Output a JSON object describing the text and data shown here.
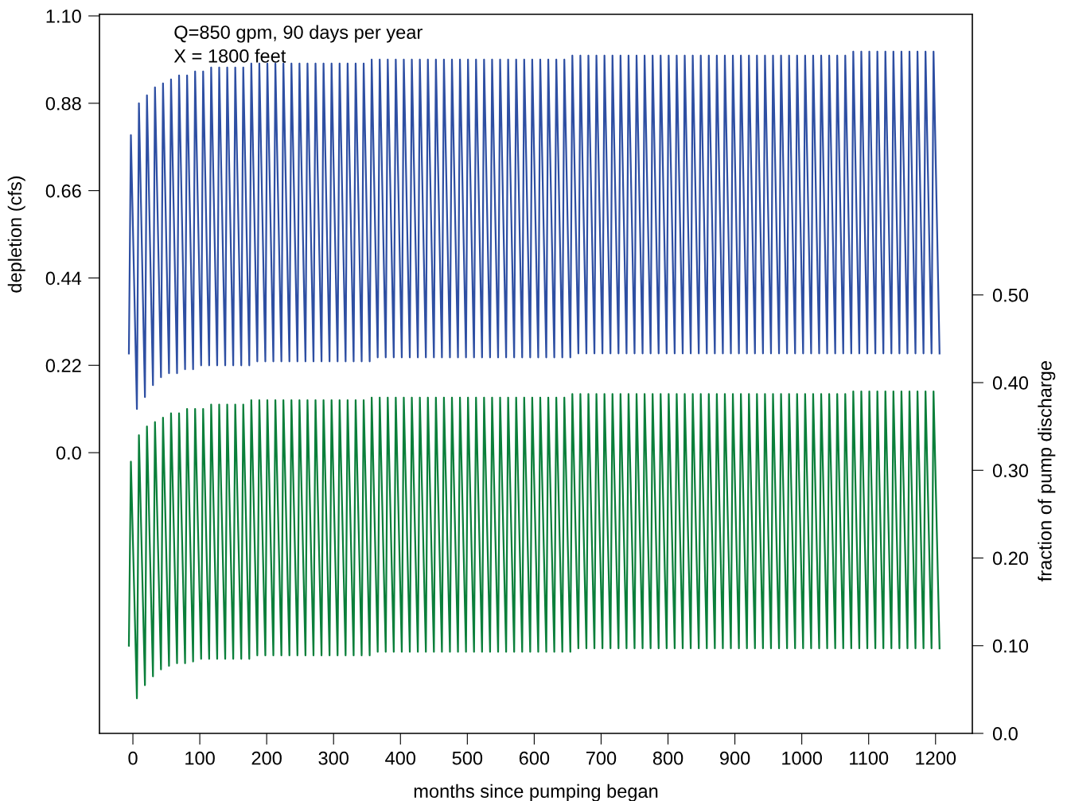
{
  "chart_data": {
    "type": "line",
    "xlabel": "months since pumping began",
    "ylabel": "depletion (cfs)",
    "y2label": "fraction of pump discharge",
    "annotations": [
      "Q=850 gpm, 90 days per year",
      "X = 1800 feet"
    ],
    "xlim": [
      -50,
      1255
    ],
    "xticks": [
      0,
      100,
      200,
      300,
      400,
      500,
      600,
      700,
      800,
      900,
      1000,
      1100,
      1200
    ],
    "ylim": [
      -0.707,
      1.104
    ],
    "yticks": [
      {
        "value": 0,
        "label": "0.0"
      },
      0.22,
      0.44,
      0.66,
      0.88,
      {
        "value": 1.1,
        "label": "1.10"
      }
    ],
    "y2lim": [
      0,
      0.82
    ],
    "y2ticks": [
      {
        "value": 0,
        "label": "0.0"
      },
      {
        "value": 0.1,
        "label": "0.10"
      },
      {
        "value": 0.2,
        "label": "0.20"
      },
      {
        "value": 0.3,
        "label": "0.30"
      },
      {
        "value": 0.4,
        "label": "0.40"
      },
      {
        "value": 0.5,
        "label": "0.50"
      }
    ],
    "grid": false,
    "legend": false,
    "marker": "none",
    "line_style": "solid",
    "x": [
      -6,
      -3,
      6,
      9,
      18,
      21,
      30,
      33,
      42,
      45,
      54,
      57,
      66,
      69,
      78,
      81,
      90,
      93,
      102,
      105,
      114,
      117,
      126,
      129,
      138,
      141,
      150,
      153,
      162,
      165,
      174,
      177,
      186,
      189,
      198,
      201,
      210,
      213,
      222,
      225,
      234,
      237,
      246,
      249,
      258,
      261,
      270,
      273,
      282,
      285,
      294,
      297,
      306,
      309,
      318,
      321,
      330,
      333,
      342,
      345,
      354,
      357,
      366,
      369,
      378,
      381,
      390,
      393,
      402,
      405,
      414,
      417,
      426,
      429,
      438,
      441,
      450,
      453,
      462,
      465,
      474,
      477,
      486,
      489,
      498,
      501,
      510,
      513,
      522,
      525,
      534,
      537,
      546,
      549,
      558,
      561,
      570,
      573,
      582,
      585,
      594,
      597,
      606,
      609,
      618,
      621,
      630,
      633,
      642,
      645,
      654,
      657,
      666,
      669,
      678,
      681,
      690,
      693,
      702,
      705,
      714,
      717,
      726,
      729,
      738,
      741,
      750,
      753,
      762,
      765,
      774,
      777,
      786,
      789,
      798,
      801,
      810,
      813,
      822,
      825,
      834,
      837,
      846,
      849,
      858,
      861,
      870,
      873,
      882,
      885,
      894,
      897,
      906,
      909,
      918,
      921,
      930,
      933,
      942,
      945,
      954,
      957,
      966,
      969,
      978,
      981,
      990,
      993,
      1002,
      1005,
      1014,
      1017,
      1026,
      1029,
      1038,
      1041,
      1050,
      1053,
      1062,
      1065,
      1074,
      1077,
      1086,
      1089,
      1098,
      1101,
      1110,
      1113,
      1122,
      1125,
      1134,
      1137,
      1146,
      1149,
      1158,
      1161,
      1170,
      1173,
      1182,
      1185,
      1194,
      1197,
      1206
    ],
    "series": [
      {
        "color": "#2e4fa3",
        "values": [
          0.25,
          0.8,
          0.11,
          0.88,
          0.14,
          0.9,
          0.17,
          0.92,
          0.19,
          0.93,
          0.2,
          0.94,
          0.2,
          0.95,
          0.21,
          0.95,
          0.21,
          0.96,
          0.22,
          0.96,
          0.22,
          0.97,
          0.22,
          0.97,
          0.22,
          0.97,
          0.22,
          0.97,
          0.22,
          0.97,
          0.22,
          0.98,
          0.23,
          0.98,
          0.23,
          0.98,
          0.23,
          0.98,
          0.23,
          0.98,
          0.23,
          0.98,
          0.23,
          0.98,
          0.23,
          0.98,
          0.23,
          0.98,
          0.23,
          0.98,
          0.23,
          0.98,
          0.23,
          0.98,
          0.23,
          0.98,
          0.23,
          0.98,
          0.23,
          0.98,
          0.23,
          0.99,
          0.24,
          0.99,
          0.24,
          0.99,
          0.24,
          0.99,
          0.24,
          0.99,
          0.24,
          0.99,
          0.24,
          0.99,
          0.24,
          0.99,
          0.24,
          0.99,
          0.24,
          0.99,
          0.24,
          0.99,
          0.24,
          0.99,
          0.24,
          0.99,
          0.24,
          0.99,
          0.24,
          0.99,
          0.24,
          0.99,
          0.24,
          0.99,
          0.24,
          0.99,
          0.24,
          0.99,
          0.24,
          0.99,
          0.24,
          0.99,
          0.24,
          0.99,
          0.24,
          0.99,
          0.24,
          0.99,
          0.24,
          0.99,
          0.24,
          1.0,
          0.25,
          1.0,
          0.25,
          1.0,
          0.25,
          1.0,
          0.25,
          1.0,
          0.25,
          1.0,
          0.25,
          1.0,
          0.25,
          1.0,
          0.25,
          1.0,
          0.25,
          1.0,
          0.25,
          1.0,
          0.25,
          1.0,
          0.25,
          1.0,
          0.25,
          1.0,
          0.25,
          1.0,
          0.25,
          1.0,
          0.25,
          1.0,
          0.25,
          1.0,
          0.25,
          1.0,
          0.25,
          1.0,
          0.25,
          1.0,
          0.25,
          1.0,
          0.25,
          1.0,
          0.25,
          1.0,
          0.25,
          1.0,
          0.25,
          1.0,
          0.25,
          1.0,
          0.25,
          1.0,
          0.25,
          1.0,
          0.25,
          1.0,
          0.25,
          1.0,
          0.25,
          1.0,
          0.25,
          1.0,
          0.25,
          1.0,
          0.25,
          1.0,
          0.25,
          1.01,
          0.25,
          1.01,
          0.25,
          1.01,
          0.25,
          1.01,
          0.25,
          1.01,
          0.25,
          1.01,
          0.25,
          1.01,
          0.25,
          1.01,
          0.25,
          1.01,
          0.25,
          1.01,
          0.25,
          1.01,
          0.25
        ]
      },
      {
        "color": "#0a7f3a",
        "axis": "y2",
        "values": [
          0.1,
          0.31,
          0.04,
          0.34,
          0.055,
          0.35,
          0.065,
          0.355,
          0.073,
          0.36,
          0.077,
          0.365,
          0.08,
          0.365,
          0.08,
          0.37,
          0.082,
          0.37,
          0.085,
          0.37,
          0.085,
          0.375,
          0.085,
          0.375,
          0.085,
          0.375,
          0.085,
          0.375,
          0.085,
          0.375,
          0.085,
          0.38,
          0.089,
          0.38,
          0.089,
          0.38,
          0.089,
          0.38,
          0.089,
          0.38,
          0.089,
          0.38,
          0.089,
          0.38,
          0.089,
          0.38,
          0.089,
          0.38,
          0.089,
          0.38,
          0.089,
          0.38,
          0.089,
          0.38,
          0.089,
          0.38,
          0.089,
          0.38,
          0.089,
          0.38,
          0.089,
          0.383,
          0.093,
          0.383,
          0.093,
          0.383,
          0.093,
          0.383,
          0.093,
          0.383,
          0.093,
          0.383,
          0.093,
          0.383,
          0.093,
          0.383,
          0.093,
          0.383,
          0.093,
          0.383,
          0.093,
          0.383,
          0.093,
          0.383,
          0.093,
          0.383,
          0.093,
          0.383,
          0.093,
          0.383,
          0.093,
          0.383,
          0.093,
          0.383,
          0.093,
          0.383,
          0.093,
          0.383,
          0.093,
          0.383,
          0.093,
          0.383,
          0.093,
          0.383,
          0.093,
          0.383,
          0.093,
          0.383,
          0.093,
          0.383,
          0.093,
          0.387,
          0.097,
          0.387,
          0.097,
          0.387,
          0.097,
          0.387,
          0.097,
          0.387,
          0.097,
          0.387,
          0.097,
          0.387,
          0.097,
          0.387,
          0.097,
          0.387,
          0.097,
          0.387,
          0.097,
          0.387,
          0.097,
          0.387,
          0.097,
          0.387,
          0.097,
          0.387,
          0.097,
          0.387,
          0.097,
          0.387,
          0.097,
          0.387,
          0.097,
          0.387,
          0.097,
          0.387,
          0.097,
          0.387,
          0.097,
          0.387,
          0.097,
          0.387,
          0.097,
          0.387,
          0.097,
          0.387,
          0.097,
          0.387,
          0.097,
          0.387,
          0.097,
          0.387,
          0.097,
          0.387,
          0.097,
          0.387,
          0.097,
          0.387,
          0.097,
          0.387,
          0.097,
          0.387,
          0.097,
          0.387,
          0.097,
          0.387,
          0.097,
          0.387,
          0.097,
          0.39,
          0.097,
          0.39,
          0.097,
          0.39,
          0.097,
          0.39,
          0.097,
          0.39,
          0.097,
          0.39,
          0.097,
          0.39,
          0.097,
          0.39,
          0.097,
          0.39,
          0.097,
          0.39,
          0.097,
          0.39,
          0.097
        ]
      }
    ]
  }
}
